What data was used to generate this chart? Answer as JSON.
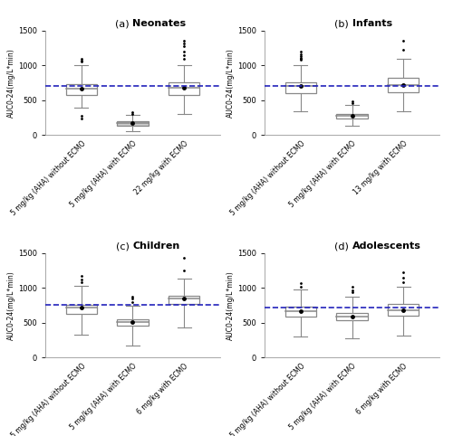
{
  "panels": [
    {
      "title_prefix": "(a) ",
      "title_bold": "Neonates",
      "dashed_line_y": 700,
      "ylabel": "AUC0-24(mg/L*min)",
      "xlabels": [
        "5 mg/kg (AHA) without ECMO",
        "5 mg/kg (AHA) with ECMO",
        "22 mg/kg with ECMO"
      ],
      "boxes": [
        {
          "q1": 580,
          "median": 670,
          "q3": 730,
          "whisker_low": 390,
          "whisker_high": 1010,
          "mean": 670,
          "fliers_high": [
            1060,
            1075,
            1090
          ],
          "fliers_low": [
            235,
            280
          ]
        },
        {
          "q1": 140,
          "median": 175,
          "q3": 200,
          "whisker_low": 55,
          "whisker_high": 285,
          "mean": 175,
          "fliers_high": [
            310,
            335
          ],
          "fliers_low": []
        },
        {
          "q1": 570,
          "median": 680,
          "q3": 760,
          "whisker_low": 310,
          "whisker_high": 1010,
          "mean": 680,
          "fliers_high": [
            1100,
            1150,
            1200,
            1280,
            1310,
            1350
          ],
          "fliers_low": []
        }
      ],
      "box_colors": [
        "white",
        "#c8c8c8",
        "white"
      ]
    },
    {
      "title_prefix": "(b) ",
      "title_bold": "Infants",
      "dashed_line_y": 700,
      "ylabel": "AUC0-24(mg/L*min)",
      "xlabels": [
        "5 mg/kg (AHA) without ECMO",
        "5 mg/kg (AHA) with ECMO",
        "13 mg/kg with ECMO"
      ],
      "boxes": [
        {
          "q1": 600,
          "median": 700,
          "q3": 760,
          "whisker_low": 340,
          "whisker_high": 1010,
          "mean": 700,
          "fliers_high": [
            1080,
            1100,
            1110,
            1130,
            1160,
            1200
          ],
          "fliers_low": []
        },
        {
          "q1": 240,
          "median": 280,
          "q3": 310,
          "whisker_low": 130,
          "whisker_high": 430,
          "mean": 280,
          "fliers_high": [
            460,
            490
          ],
          "fliers_low": []
        },
        {
          "q1": 610,
          "median": 720,
          "q3": 820,
          "whisker_low": 340,
          "whisker_high": 1100,
          "mean": 720,
          "fliers_high": [
            1230,
            1350
          ],
          "fliers_low": []
        }
      ],
      "box_colors": [
        "white",
        "white",
        "white"
      ]
    },
    {
      "title_prefix": "(c) ",
      "title_bold": "Children",
      "dashed_line_y": 750,
      "ylabel": "AUC0-24(mg/L*min)",
      "xlabels": [
        "5 mg/kg (AHA) without ECMO",
        "5 mg/kg (AHA) with ECMO",
        "6 mg/kg with ECMO"
      ],
      "boxes": [
        {
          "q1": 620,
          "median": 710,
          "q3": 760,
          "whisker_low": 330,
          "whisker_high": 1030,
          "mean": 710,
          "fliers_high": [
            1080,
            1120,
            1170
          ],
          "fliers_low": []
        },
        {
          "q1": 460,
          "median": 510,
          "q3": 550,
          "whisker_low": 175,
          "whisker_high": 740,
          "mean": 510,
          "fliers_high": [
            800,
            840,
            870
          ],
          "fliers_low": []
        },
        {
          "q1": 770,
          "median": 840,
          "q3": 890,
          "whisker_low": 430,
          "whisker_high": 1130,
          "mean": 840,
          "fliers_high": [
            1250,
            1430
          ],
          "fliers_low": []
        }
      ],
      "box_colors": [
        "white",
        "white",
        "white"
      ]
    },
    {
      "title_prefix": "(d) ",
      "title_bold": "Adolescents",
      "dashed_line_y": 720,
      "ylabel": "AUC0-24(mg/L*min)",
      "xlabels": [
        "5 mg/kg (AHA) without ECMO",
        "5 mg/kg (AHA) with ECMO",
        "6 mg/kg with ECMO"
      ],
      "boxes": [
        {
          "q1": 590,
          "median": 660,
          "q3": 730,
          "whisker_low": 300,
          "whisker_high": 980,
          "mean": 660,
          "fliers_high": [
            1020,
            1060
          ],
          "fliers_low": []
        },
        {
          "q1": 530,
          "median": 590,
          "q3": 640,
          "whisker_low": 270,
          "whisker_high": 870,
          "mean": 590,
          "fliers_high": [
            930,
            960,
            1010
          ],
          "fliers_low": []
        },
        {
          "q1": 600,
          "median": 680,
          "q3": 770,
          "whisker_low": 310,
          "whisker_high": 1010,
          "mean": 680,
          "fliers_high": [
            1080,
            1140,
            1220
          ],
          "fliers_low": []
        }
      ],
      "box_colors": [
        "white",
        "white",
        "white"
      ]
    }
  ],
  "dashed_line_color": "#2222bb",
  "mean_dot_color": "black",
  "flier_color": "black",
  "box_edge_color": "#888888",
  "whisker_color": "#888888",
  "ylim": [
    0,
    1500
  ],
  "yticks": [
    0,
    500,
    1000,
    1500
  ],
  "fig_width": 5.0,
  "fig_height": 4.82
}
